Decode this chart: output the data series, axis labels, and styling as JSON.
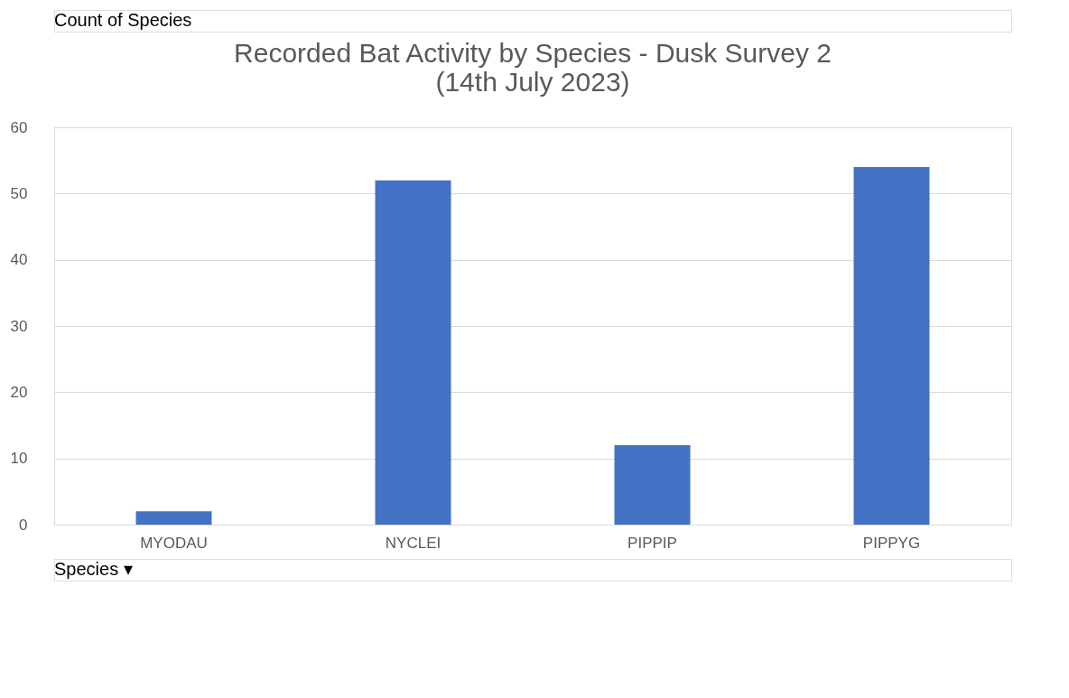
{
  "chart_data": {
    "type": "bar",
    "title": "Recorded Bat Activity by Species - Dusk Survey 2\n(14th July 2023)",
    "categories": [
      "MYODAU",
      "NYCLEI",
      "PIPPIP",
      "PIPPYG"
    ],
    "values": [
      2,
      52,
      12,
      54
    ],
    "color": "#4472c4",
    "ylim": [
      0,
      60
    ],
    "yticks": [
      0,
      10,
      20,
      30,
      40,
      50,
      60
    ],
    "grid": "y",
    "legend": false,
    "annotations": [
      "Count of Species",
      "Species ▾"
    ]
  }
}
